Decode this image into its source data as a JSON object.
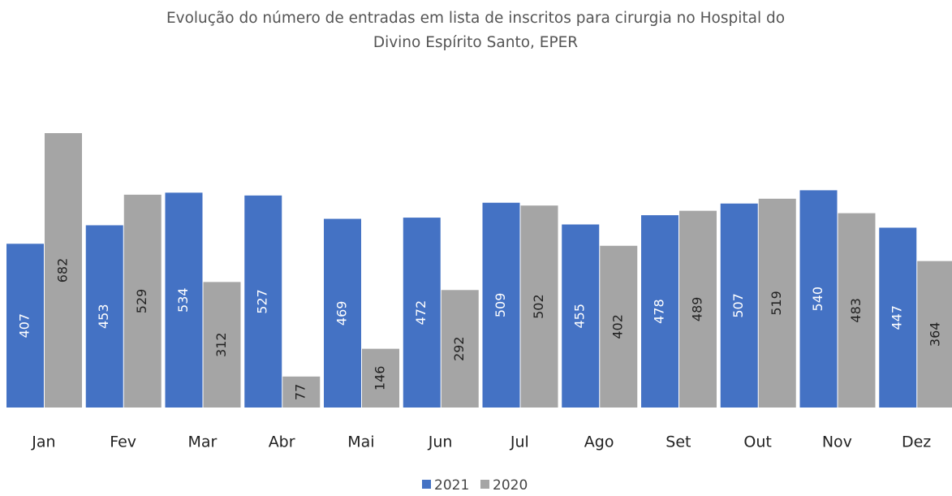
{
  "chart_data": {
    "type": "bar",
    "title": "Evolução do número de entradas em lista de inscritos para cirurgia no Hospital do Divino Espírito Santo, EPER",
    "categories": [
      "Jan",
      "Fev",
      "Mar",
      "Abr",
      "Mai",
      "Jun",
      "Jul",
      "Ago",
      "Set",
      "Out",
      "Nov",
      "Dez"
    ],
    "series": [
      {
        "name": "2021",
        "color": "#4472c4",
        "values": [
          407,
          453,
          534,
          527,
          469,
          472,
          509,
          455,
          478,
          507,
          540,
          447
        ]
      },
      {
        "name": "2020",
        "color": "#a5a5a5",
        "values": [
          682,
          529,
          312,
          77,
          146,
          292,
          502,
          402,
          489,
          519,
          483,
          364
        ]
      }
    ],
    "legend": "bottom"
  }
}
